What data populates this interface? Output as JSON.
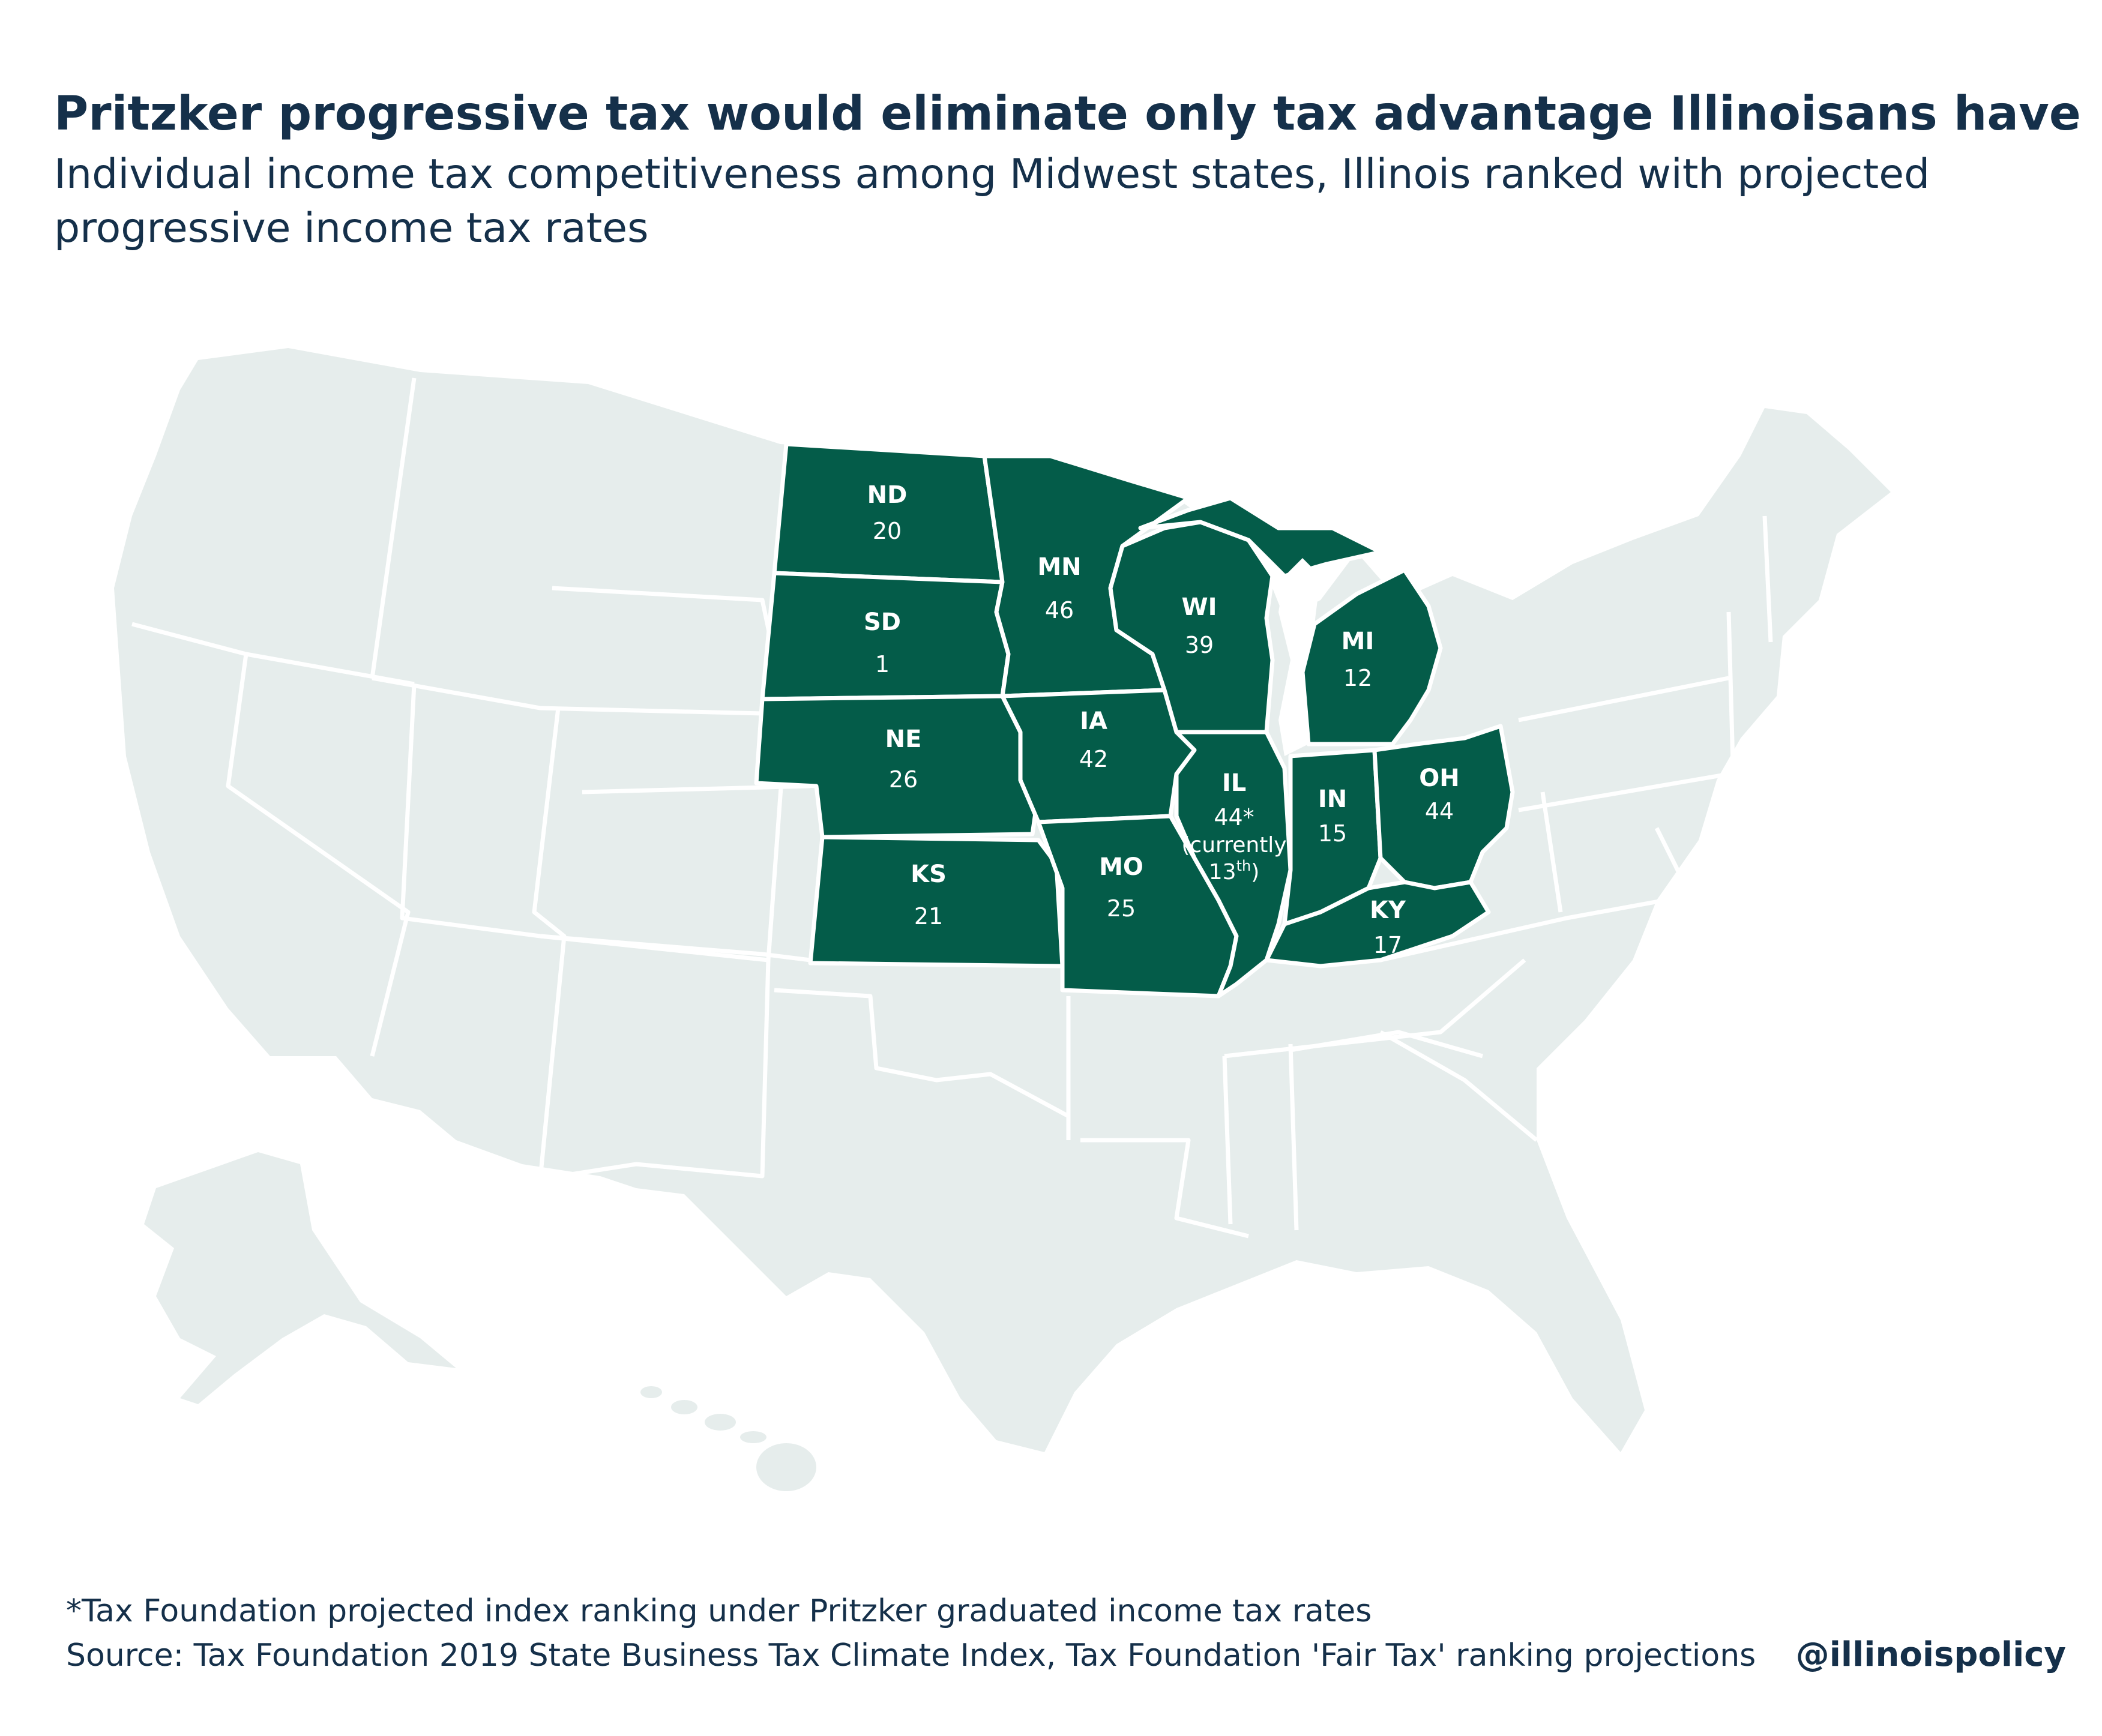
{
  "header": {
    "title": "Pritzker progressive tax would eliminate only tax advantage Illinoisans have",
    "subtitle": "Individual income tax competitiveness among Midwest states, Illinois ranked with projected progressive income tax rates"
  },
  "colors": {
    "highlight": "#045c49",
    "other_states": "#e6edec",
    "borders": "#ffffff",
    "text": "#15304a"
  },
  "map": {
    "states": [
      {
        "abbr": "ND",
        "rank": "20"
      },
      {
        "abbr": "SD",
        "rank": "1"
      },
      {
        "abbr": "NE",
        "rank": "26"
      },
      {
        "abbr": "KS",
        "rank": "21"
      },
      {
        "abbr": "MN",
        "rank": "46"
      },
      {
        "abbr": "IA",
        "rank": "42"
      },
      {
        "abbr": "MO",
        "rank": "25"
      },
      {
        "abbr": "WI",
        "rank": "39"
      },
      {
        "abbr": "IL",
        "rank": "44*",
        "note_line1": "(currently",
        "note_line2": "13",
        "note_sup": "th",
        "note_close": ")"
      },
      {
        "abbr": "MI",
        "rank": "12"
      },
      {
        "abbr": "IN",
        "rank": "15"
      },
      {
        "abbr": "OH",
        "rank": "44"
      },
      {
        "abbr": "KY",
        "rank": "17"
      }
    ]
  },
  "footer": {
    "footnote": "*Tax Foundation projected index ranking under Pritzker graduated income tax rates",
    "source": "Source: Tax Foundation 2019 State Business Tax Climate Index, Tax Foundation 'Fair Tax' ranking projections",
    "handle": "@illinoispolicy"
  }
}
